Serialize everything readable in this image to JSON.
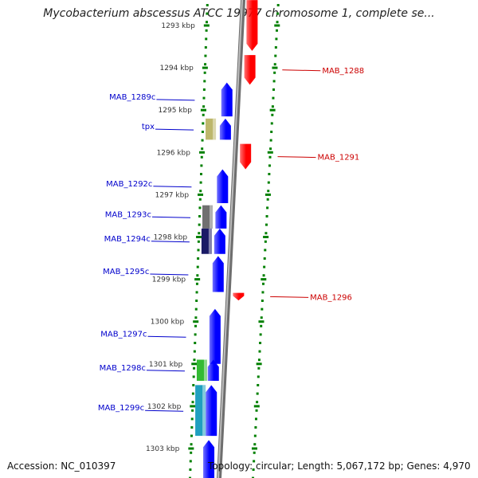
{
  "header": {
    "title": "Mycobacterium abscessus ATCC 19977 chromosome 1, complete se..."
  },
  "footer": {
    "accession": "Accession: NC_010397",
    "topology": "Topology: circular; Length: 5,067,172 bp; Genes: 4,970"
  },
  "colors": {
    "forward_gene": "#ff0000",
    "reverse_gene": "#0000ff",
    "forward_label": "#cc0000",
    "reverse_label": "#0000cc",
    "tick": "#008000",
    "backbone": "#888888"
  },
  "ticks": [
    {
      "label": "1293 kbp",
      "kbp": 1293
    },
    {
      "label": "1294 kbp",
      "kbp": 1294
    },
    {
      "label": "1295 kbp",
      "kbp": 1295
    },
    {
      "label": "1296 kbp",
      "kbp": 1296
    },
    {
      "label": "1297 kbp",
      "kbp": 1297
    },
    {
      "label": "1298 kbp",
      "kbp": 1298
    },
    {
      "label": "1299 kbp",
      "kbp": 1299
    },
    {
      "label": "1300 kbp",
      "kbp": 1300
    },
    {
      "label": "1301 kbp",
      "kbp": 1301
    },
    {
      "label": "1302 kbp",
      "kbp": 1302
    },
    {
      "label": "1303 kbp",
      "kbp": 1303
    }
  ],
  "forward_genes": [
    {
      "label": "",
      "start_kbp": 1292.4,
      "end_kbp": 1293.6
    },
    {
      "label": "MAB_1288",
      "start_kbp": 1293.7,
      "end_kbp": 1294.4
    },
    {
      "label": "MAB_1291",
      "start_kbp": 1295.8,
      "end_kbp": 1296.4
    },
    {
      "label": "MAB_1296",
      "start_kbp": 1299.32,
      "end_kbp": 1299.5
    }
  ],
  "reverse_genes": [
    {
      "label": "MAB_1289c",
      "start_kbp": 1294.35,
      "end_kbp": 1295.15
    },
    {
      "label": "tpx",
      "start_kbp": 1295.2,
      "end_kbp": 1295.7
    },
    {
      "label": "MAB_1292c",
      "start_kbp": 1296.4,
      "end_kbp": 1297.2
    },
    {
      "label": "MAB_1293c",
      "start_kbp": 1297.25,
      "end_kbp": 1297.8
    },
    {
      "label": "MAB_1294c",
      "start_kbp": 1297.8,
      "end_kbp": 1298.4
    },
    {
      "label": "MAB_1295c",
      "start_kbp": 1298.45,
      "end_kbp": 1299.3
    },
    {
      "label": "MAB_1297c",
      "start_kbp": 1299.7,
      "end_kbp": 1301.0
    },
    {
      "label": "MAB_1298c",
      "start_kbp": 1300.9,
      "end_kbp": 1301.4
    },
    {
      "label": "MAB_1299c",
      "start_kbp": 1301.5,
      "end_kbp": 1302.7
    },
    {
      "label": "",
      "start_kbp": 1302.8,
      "end_kbp": 1303.8
    }
  ],
  "features": [
    {
      "kbp_start": 1295.2,
      "kbp_end": 1295.7,
      "color": "#bdb76b"
    },
    {
      "kbp_start": 1297.25,
      "kbp_end": 1297.8,
      "color": "#707070"
    },
    {
      "kbp_start": 1297.8,
      "kbp_end": 1298.4,
      "color": "#1a1a66"
    },
    {
      "kbp_start": 1300.9,
      "kbp_end": 1301.4,
      "color": "#33bb33"
    },
    {
      "kbp_start": 1301.5,
      "kbp_end": 1302.7,
      "color": "#20a0c0"
    }
  ]
}
